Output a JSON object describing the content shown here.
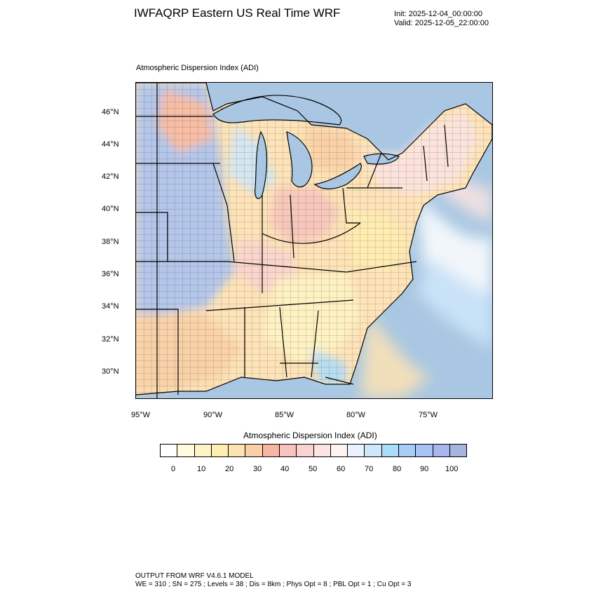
{
  "header": {
    "title": "IWFAQRP Eastern US Real Time WRF",
    "init": "Init: 2025-12-04_00:00:00",
    "valid": "Valid: 2025-12-05_22:00:00",
    "subtitle": "Atmospheric Dispersion Index   (ADI)"
  },
  "map": {
    "lat_labels": [
      "46°N",
      "44°N",
      "42°N",
      "40°N",
      "38°N",
      "36°N",
      "34°N",
      "32°N",
      "30°N"
    ],
    "lon_labels": [
      "95°W",
      "90°W",
      "85°W",
      "80°W",
      "75°W"
    ],
    "water_color": "#a9c7e2",
    "land_color": "#fde3b7"
  },
  "colorbar": {
    "title": "Atmospheric Dispersion Index  (ADI)",
    "labels": [
      "0",
      "10",
      "20",
      "30",
      "40",
      "50",
      "60",
      "70",
      "80",
      "90",
      "100"
    ],
    "colors": [
      "#ffffff",
      "#fffbdc",
      "#fff4c4",
      "#ffeeb0",
      "#fde3b4",
      "#f9cfa6",
      "#f6b7a2",
      "#f7c3bc",
      "#f9d3cf",
      "#fbe4e2",
      "#fdf3f3",
      "#ebf2ff",
      "#cfe7fb",
      "#aadcfb",
      "#a8cdf7",
      "#a8c2f2",
      "#a9b8ec",
      "#a6b4e0"
    ]
  },
  "footer": {
    "line1": "OUTPUT FROM WRF V4.6.1 MODEL",
    "line2": "WE = 310 ; SN = 275 ; Levels = 38 ; Dis = 8km ; Phys Opt = 8 ; PBL Opt = 1 ; Cu Opt = 3"
  }
}
